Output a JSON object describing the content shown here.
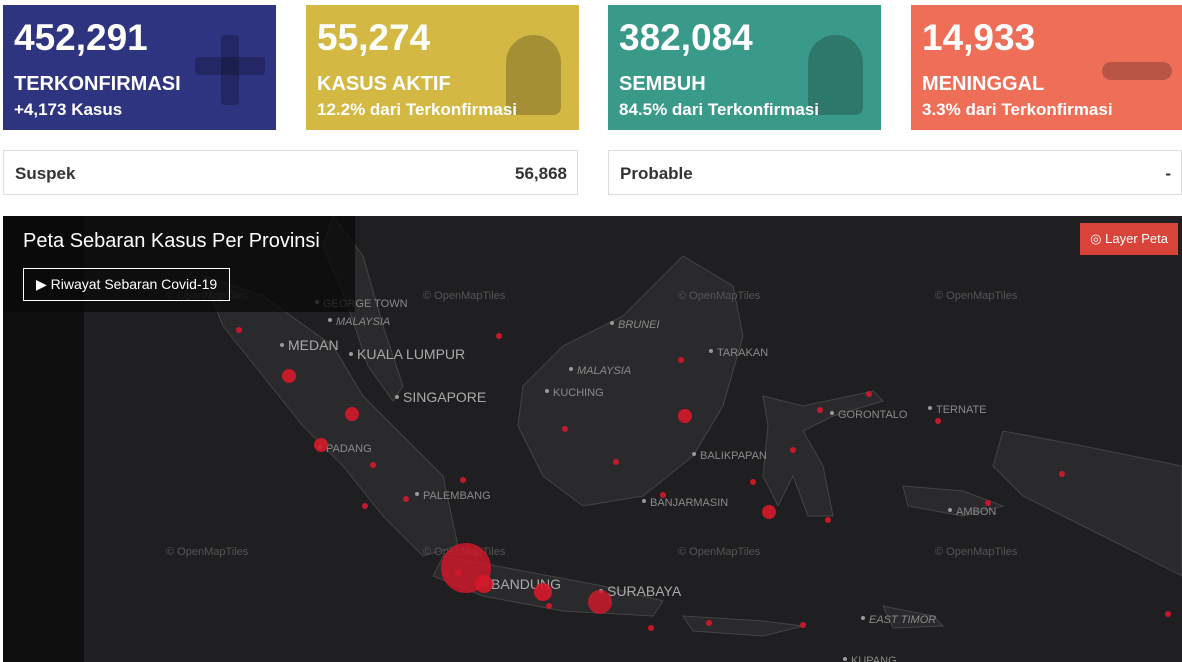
{
  "cards": [
    {
      "value": "452,291",
      "label": "TERKONFIRMASI",
      "sub": "+4,173 Kasus"
    },
    {
      "value": "55,274",
      "label": "KASUS AKTIF",
      "sub": "12.2% dari Terkonfirmasi"
    },
    {
      "value": "382,084",
      "label": "SEMBUH",
      "sub": "84.5% dari Terkonfirmasi"
    },
    {
      "value": "14,933",
      "label": "MENINGGAL",
      "sub": "3.3% dari Terkonfirmasi"
    }
  ],
  "extra": [
    {
      "label": "Suspek",
      "value": "56,868"
    },
    {
      "label": "Probable",
      "value": "-"
    }
  ],
  "map": {
    "title": "Peta Sebaran Kasus Per Provinsi",
    "history_button": "Riwayat Sebaran Covid-19",
    "layer_button": "Layer Peta",
    "attribution": "© OpenMapTiles",
    "places": [
      "GEORGE TOWN",
      "MALAYSIA",
      "MEDAN",
      "KUALA LUMPUR",
      "SINGAPORE",
      "PADANG",
      "PALEMBANG",
      "BANDUNG",
      "SURABAYA",
      "BRUNEI",
      "MALAYSIA",
      "KUCHING",
      "TARAKAN",
      "BALIKPAPAN",
      "BANJARMASIN",
      "GORONTALO",
      "TERNATE",
      "AMBON",
      "EAST TIMOR",
      "KUPANG"
    ]
  }
}
